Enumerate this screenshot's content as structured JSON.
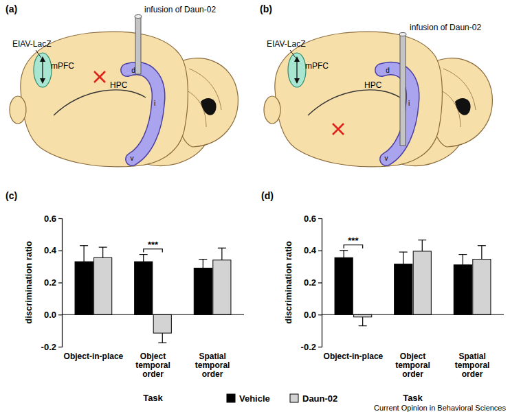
{
  "diagrams": [
    {
      "label": "(a)",
      "vector": "EIAV-LacZ",
      "region_pfc": "mPFC",
      "region_hpc": "HPC",
      "infusion": "infusion of Daun-02",
      "subregions": [
        "d",
        "i",
        "v"
      ]
    },
    {
      "label": "(b)",
      "vector": "EIAV-LacZ",
      "region_pfc": "mPFC",
      "region_hpc": "HPC",
      "infusion": "infusion of Daun-02",
      "subregions": [
        "d",
        "i",
        "v"
      ]
    }
  ],
  "chart_data": [
    {
      "type": "bar",
      "panel_label": "(c)",
      "x_label": "Task",
      "y_label": "discrimination ratio",
      "categories": [
        "Object-in-place",
        "Object temporal order",
        "Spatial temporal order"
      ],
      "series": [
        {
          "name": "Vehicle",
          "color": "#000000",
          "values": [
            0.33,
            0.33,
            0.29
          ],
          "errors": [
            0.1,
            0.045,
            0.055
          ]
        },
        {
          "name": "Daun-02",
          "color": "#d3d3d3",
          "values": [
            0.355,
            -0.115,
            0.34
          ],
          "errors": [
            0.065,
            0.06,
            0.075
          ]
        }
      ],
      "ylim": [
        -0.2,
        0.6
      ],
      "yticks": [
        -0.2,
        {
          "value": 0,
          "label": "0.0"
        },
        0.2,
        0.4,
        0.6
      ],
      "legend": "bottom",
      "annotations": [
        {
          "text": "***",
          "category": "Object temporal order"
        }
      ]
    },
    {
      "type": "bar",
      "panel_label": "(d)",
      "x_label": "Task",
      "y_label": "discrimination ratio",
      "categories": [
        "Object-in-place",
        "Object temporal order",
        "Spatial temporal order"
      ],
      "series": [
        {
          "color": "#000000",
          "values": [
            0.355,
            0.315,
            0.31
          ],
          "errors": [
            0.045,
            0.075,
            0.065
          ]
        },
        {
          "color": "#d3d3d3",
          "values": [
            -0.015,
            0.395,
            0.345
          ],
          "errors": [
            0.055,
            0.07,
            0.085
          ]
        }
      ],
      "ylim": [
        -0.2,
        0.6
      ],
      "yticks": [
        -0.2,
        {
          "value": 0,
          "label": "0.0"
        },
        0.2,
        0.4,
        0.6
      ],
      "annotations": [
        {
          "text": "***",
          "category": "Object-in-place"
        }
      ]
    }
  ],
  "credit": "Current Opinion in Behavioral Sciences"
}
